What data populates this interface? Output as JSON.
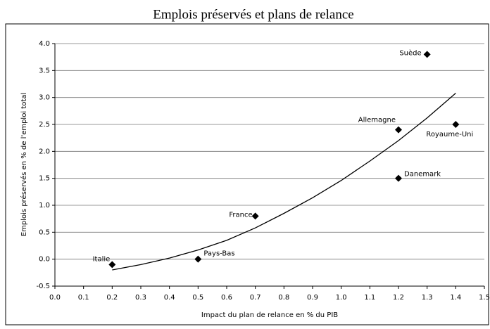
{
  "chart_data": {
    "type": "scatter",
    "title": "Emplois préservés et plans de relance",
    "x_label": "Impact du plan de relance en % du PIB",
    "y_label": "Emplois préservés en % de l'emploi total",
    "labels": [
      "Italie",
      "Pays-Bas",
      "France",
      "Allemagne",
      "Danemark",
      "Royaume-Uni",
      "Suède"
    ],
    "x": [
      0.2,
      0.5,
      0.7,
      1.2,
      1.2,
      1.4,
      1.3
    ],
    "values": [
      -0.1,
      0,
      0.8,
      2.4,
      1.5,
      2.5,
      3.8
    ],
    "color": "#000000",
    "trendline": {
      "x": [
        0.2,
        0.3,
        0.4,
        0.5,
        0.6,
        0.7,
        0.8,
        0.9,
        1.0,
        1.1,
        1.2,
        1.3,
        1.4
      ],
      "values": [
        -0.2,
        -0.1,
        0.02,
        0.17,
        0.35,
        0.58,
        0.85,
        1.14,
        1.46,
        1.82,
        2.2,
        2.62,
        3.08
      ]
    },
    "xlim": [
      0,
      1.5
    ],
    "xticks": [
      {
        "value": 0,
        "label": "0.0"
      },
      0.1,
      0.2,
      0.3,
      0.4,
      0.5,
      0.6,
      0.7,
      0.8,
      0.9,
      {
        "value": 1,
        "label": "1.0"
      },
      1.1,
      1.2,
      1.3,
      1.4,
      1.5
    ],
    "ylim": [
      -0.5,
      4
    ],
    "yticks": [
      -0.5,
      {
        "value": 0,
        "label": "0.0"
      },
      0.5,
      {
        "value": 1,
        "label": "1.0"
      },
      1.5,
      {
        "value": 2,
        "label": "2.0"
      },
      2.5,
      {
        "value": 3,
        "label": "3.0"
      },
      3.5,
      {
        "value": 4,
        "label": "4.0"
      }
    ],
    "grid": true
  }
}
